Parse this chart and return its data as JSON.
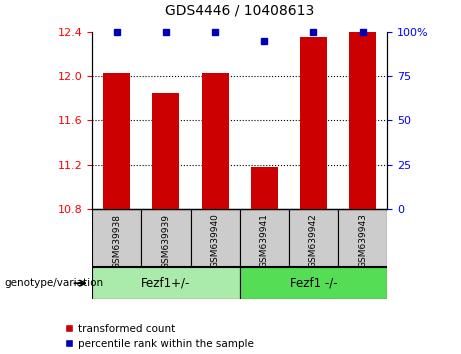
{
  "title": "GDS4446 / 10408613",
  "samples": [
    "GSM639938",
    "GSM639939",
    "GSM639940",
    "GSM639941",
    "GSM639942",
    "GSM639943"
  ],
  "red_values": [
    12.03,
    11.85,
    12.03,
    11.18,
    12.35,
    12.4
  ],
  "blue_values": [
    100,
    100,
    100,
    95,
    100,
    100
  ],
  "ylim_left": [
    10.8,
    12.4
  ],
  "ylim_right": [
    0,
    100
  ],
  "yticks_left": [
    10.8,
    11.2,
    11.6,
    12.0,
    12.4
  ],
  "yticks_right": [
    0,
    25,
    50,
    75,
    100
  ],
  "group1_label": "Fezf1+/-",
  "group2_label": "Fezf1 -/-",
  "genotype_label": "genotype/variation",
  "legend_red": "transformed count",
  "legend_blue": "percentile rank within the sample",
  "bar_color": "#cc0000",
  "dot_color": "#0000bb",
  "group1_color": "#aaeaaa",
  "group2_color": "#55dd55",
  "sample_bg_color": "#cccccc",
  "bar_width": 0.55,
  "baseline": 10.8
}
